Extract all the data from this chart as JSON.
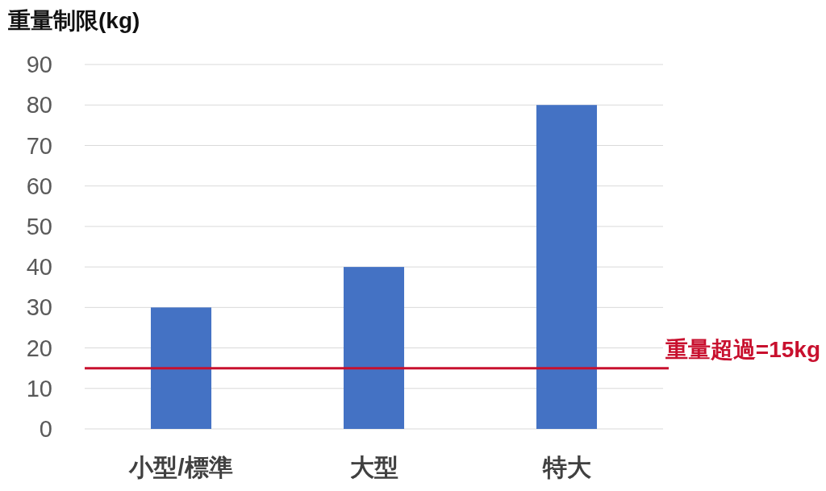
{
  "chart_data": {
    "type": "bar",
    "ylabel": "重量制限(kg)",
    "categories": [
      "小型/標準",
      "大型",
      "特大"
    ],
    "values": [
      30,
      40,
      80
    ],
    "color": "#4472c4",
    "ylim": [
      0,
      90
    ],
    "yticks": [
      0,
      10,
      20,
      30,
      40,
      50,
      60,
      70,
      80,
      90
    ],
    "grid": "y",
    "ref_lines": [
      {
        "axis": "y",
        "value": 15,
        "label": "重量超過=15kg",
        "color": "#c8102e"
      }
    ]
  }
}
